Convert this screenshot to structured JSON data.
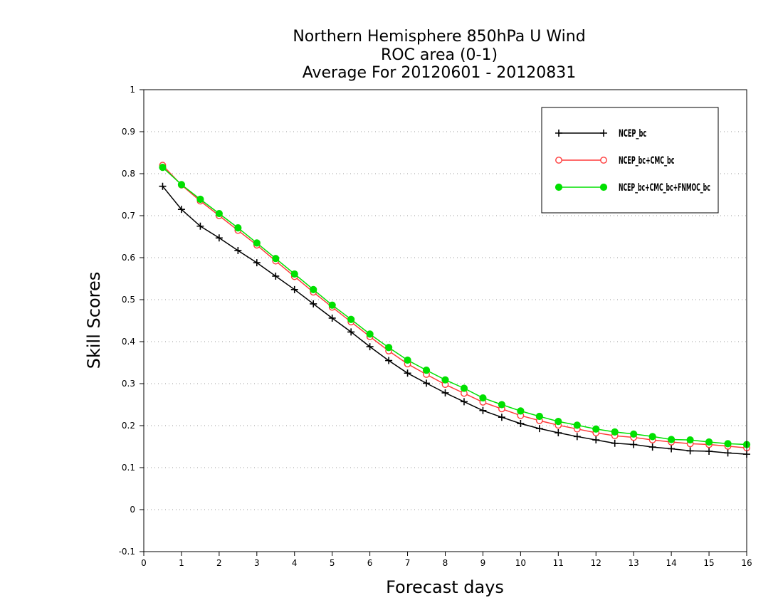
{
  "chart_data": {
    "type": "line",
    "title_lines": [
      "Northern Hemisphere 850hPa U Wind",
      "ROC area (0-1)",
      "Average For 20120601 - 20120831"
    ],
    "xlabel": "Forecast days",
    "ylabel": "Skill Scores",
    "xlim": [
      0,
      16
    ],
    "ylim": [
      -0.1,
      1
    ],
    "xticks": [
      0,
      1,
      2,
      3,
      4,
      5,
      6,
      7,
      8,
      9,
      10,
      11,
      12,
      13,
      14,
      15,
      16
    ],
    "xtick_labels": [
      "0",
      "1",
      "2",
      "3",
      "4",
      "5",
      "6",
      "7",
      "8",
      "9",
      "10",
      "11",
      "12",
      "13",
      "14",
      "15",
      "16"
    ],
    "yticks": [
      -0.1,
      0,
      0.1,
      0.2,
      0.3,
      0.4,
      0.5,
      0.6,
      0.7,
      0.8,
      0.9,
      1
    ],
    "ytick_labels": [
      "-0.1",
      "0",
      "0.1",
      "0.2",
      "0.3",
      "0.4",
      "0.5",
      "0.6",
      "0.7",
      "0.8",
      "0.9",
      "1"
    ],
    "grid": "horizontal dotted",
    "legend_position": "top-right",
    "x": [
      0.5,
      1,
      1.5,
      2,
      2.5,
      3,
      3.5,
      4,
      4.5,
      5,
      5.5,
      6,
      6.5,
      7,
      7.5,
      8,
      8.5,
      9,
      9.5,
      10,
      10.5,
      11,
      11.5,
      12,
      12.5,
      13,
      13.5,
      14,
      14.5,
      15,
      15.5,
      16
    ],
    "series": [
      {
        "name": "NCEP_bc",
        "color": "#000000",
        "marker": "plus",
        "values": [
          0.77,
          0.715,
          0.675,
          0.647,
          0.617,
          0.588,
          0.556,
          0.524,
          0.49,
          0.456,
          0.423,
          0.388,
          0.355,
          0.325,
          0.301,
          0.278,
          0.257,
          0.236,
          0.22,
          0.205,
          0.193,
          0.183,
          0.174,
          0.166,
          0.158,
          0.155,
          0.149,
          0.145,
          0.14,
          0.139,
          0.135,
          0.132
        ]
      },
      {
        "name": "NCEP_bc+CMC_bc",
        "color": "#ff3b3b",
        "marker": "open-circle",
        "values": [
          0.82,
          0.773,
          0.735,
          0.7,
          0.665,
          0.63,
          0.592,
          0.555,
          0.518,
          0.482,
          0.447,
          0.412,
          0.378,
          0.347,
          0.322,
          0.298,
          0.277,
          0.256,
          0.24,
          0.224,
          0.212,
          0.201,
          0.192,
          0.183,
          0.176,
          0.172,
          0.166,
          0.161,
          0.157,
          0.155,
          0.151,
          0.147
        ]
      },
      {
        "name": "NCEP_bc+CMC_bc+FNMOC_bc",
        "color": "#00e000",
        "marker": "filled-circle",
        "values": [
          0.815,
          0.774,
          0.739,
          0.705,
          0.671,
          0.635,
          0.598,
          0.561,
          0.524,
          0.487,
          0.453,
          0.418,
          0.386,
          0.356,
          0.332,
          0.309,
          0.289,
          0.266,
          0.25,
          0.235,
          0.222,
          0.21,
          0.201,
          0.192,
          0.185,
          0.18,
          0.174,
          0.167,
          0.166,
          0.161,
          0.157,
          0.155
        ]
      }
    ]
  }
}
